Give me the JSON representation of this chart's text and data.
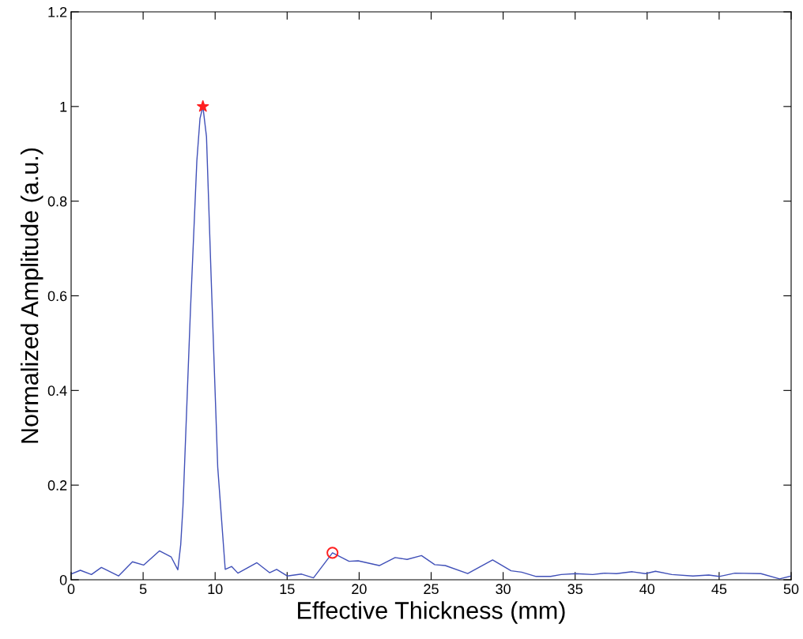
{
  "chart_data": {
    "type": "line",
    "xlabel": "Effective Thickness (mm)",
    "ylabel": "Normalized Amplitude (a.u.)",
    "xlim": [
      0,
      50
    ],
    "ylim": [
      0,
      1.2
    ],
    "xticks": [
      0,
      5,
      10,
      15,
      20,
      25,
      30,
      35,
      40,
      45,
      50
    ],
    "yticks": [
      0,
      0.2,
      0.4,
      0.6,
      0.8,
      {
        "value": 1.0,
        "label": "1"
      },
      1.2
    ],
    "grid": false,
    "legend": false,
    "series": [
      {
        "color": "#4050b8",
        "marker": "none",
        "line_style": "solid",
        "x": [
          0,
          0.64,
          1.41,
          2.1,
          3.29,
          4.26,
          5.03,
          6.13,
          6.95,
          7.41,
          7.61,
          7.77,
          8.28,
          8.73,
          8.95,
          9.15,
          9.4,
          9.73,
          10.18,
          10.7,
          11.15,
          11.58,
          12.9,
          13.78,
          14.27,
          15.0,
          16.0,
          16.83,
          18.15,
          19.3,
          19.93,
          21.4,
          22.5,
          23.33,
          24.33,
          25.25,
          25.98,
          27.54,
          29.27,
          30.55,
          31.28,
          32.29,
          33.3,
          34.03,
          35.03,
          36.22,
          37.05,
          37.87,
          38.97,
          39.88,
          40.58,
          41.71,
          43.18,
          44.28,
          45.0,
          46.1,
          47.9,
          49.2,
          50
        ],
        "values": [
          0.012,
          0.02,
          0.011,
          0.026,
          0.008,
          0.038,
          0.031,
          0.061,
          0.048,
          0.021,
          0.074,
          0.157,
          0.565,
          0.885,
          0.975,
          1.0,
          0.936,
          0.633,
          0.238,
          0.022,
          0.028,
          0.014,
          0.036,
          0.015,
          0.022,
          0.008,
          0.012,
          0.004,
          0.057,
          0.039,
          0.04,
          0.03,
          0.047,
          0.043,
          0.051,
          0.032,
          0.03,
          0.013,
          0.042,
          0.019,
          0.016,
          0.007,
          0.007,
          0.011,
          0.013,
          0.011,
          0.014,
          0.013,
          0.017,
          0.013,
          0.018,
          0.011,
          0.008,
          0.01,
          0.007,
          0.014,
          0.013,
          0.002,
          0.008
        ]
      },
      {
        "type": "scatter",
        "color": "#ff2020",
        "marker": "star",
        "x": [
          9.15
        ],
        "values": [
          1.0
        ]
      },
      {
        "type": "scatter",
        "color": "#ff2020",
        "marker": "circle",
        "x": [
          18.15
        ],
        "values": [
          0.057
        ]
      }
    ]
  }
}
